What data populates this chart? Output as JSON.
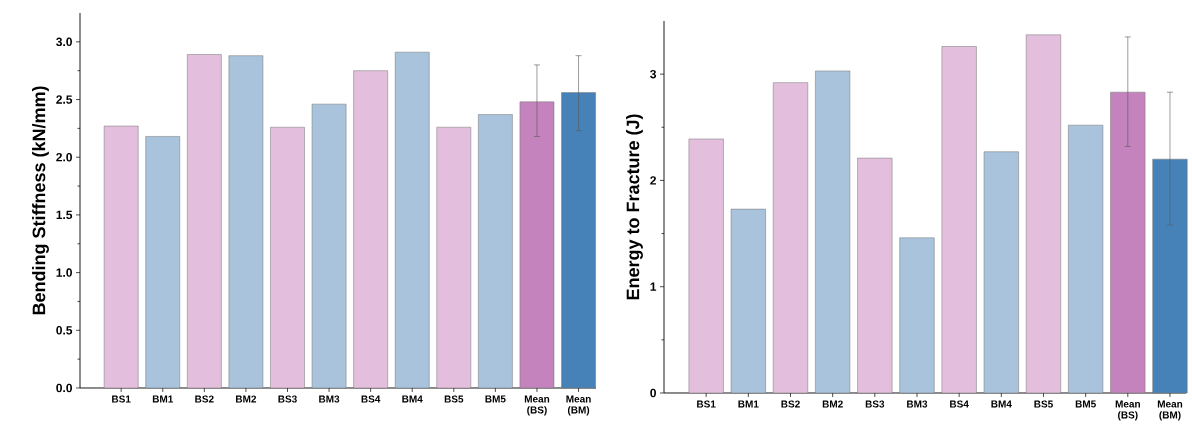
{
  "chart_data": [
    {
      "type": "bar",
      "ylabel": "Bending Stiffness (kN/mm)",
      "categories": [
        "BS1",
        "BM1",
        "BS2",
        "BM2",
        "BS3",
        "BM3",
        "BS4",
        "BM4",
        "BS5",
        "BM5",
        "Mean (BS)",
        "Mean (BM)"
      ],
      "values": [
        2.27,
        2.18,
        2.89,
        2.88,
        2.26,
        2.46,
        2.75,
        2.91,
        2.26,
        2.37,
        2.48,
        2.56
      ],
      "colors": [
        "#e3bfdd",
        "#a9c3dc",
        "#e3bfdd",
        "#a9c3dc",
        "#e3bfdd",
        "#a9c3dc",
        "#e3bfdd",
        "#a9c3dc",
        "#e3bfdd",
        "#a9c3dc",
        "#c483bd",
        "#4682b8"
      ],
      "errors": [
        null,
        null,
        null,
        null,
        null,
        null,
        null,
        null,
        null,
        null,
        [
          2.18,
          2.8
        ],
        [
          2.23,
          2.88
        ]
      ],
      "ylim": [
        0,
        3.25
      ],
      "yticks": [
        {
          "value": 0,
          "label": "0.0"
        },
        0.5,
        {
          "value": 1,
          "label": "1.0"
        },
        1.5,
        {
          "value": 2,
          "label": "2.0"
        },
        2.5,
        {
          "value": 3,
          "label": "3.0"
        }
      ]
    },
    {
      "type": "bar",
      "ylabel": "Energy to Fracture (J)",
      "categories": [
        "BS1",
        "BM1",
        "BS2",
        "BM2",
        "BS3",
        "BM3",
        "BS4",
        "BM4",
        "BS5",
        "BM5",
        "Mean (BS)",
        "Mean (BM)"
      ],
      "values": [
        2.39,
        1.73,
        2.92,
        3.03,
        2.21,
        1.46,
        3.26,
        2.27,
        3.37,
        2.52,
        2.83,
        2.2
      ],
      "colors": [
        "#e3bfdd",
        "#a9c3dc",
        "#e3bfdd",
        "#a9c3dc",
        "#e3bfdd",
        "#a9c3dc",
        "#e3bfdd",
        "#a9c3dc",
        "#e3bfdd",
        "#a9c3dc",
        "#c483bd",
        "#4682b8"
      ],
      "errors": [
        null,
        null,
        null,
        null,
        null,
        null,
        null,
        null,
        null,
        null,
        [
          2.32,
          3.35
        ],
        [
          1.58,
          2.83
        ]
      ],
      "ylim": [
        0,
        3.5
      ],
      "yticks": [
        0,
        1,
        2,
        3
      ]
    }
  ]
}
